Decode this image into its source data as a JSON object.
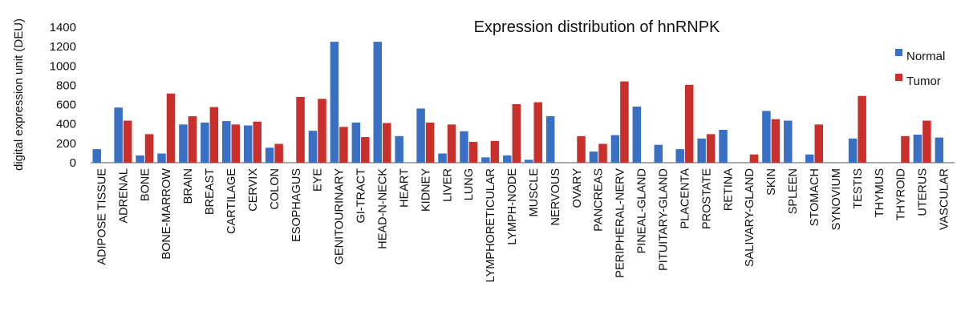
{
  "chart_data": {
    "type": "bar",
    "title": "Expression distribution of hnRNPK",
    "xlabel": "",
    "ylabel": "digital expression unit (DEU)",
    "ylim": [
      0,
      1400
    ],
    "yticks": [
      0,
      200,
      400,
      600,
      800,
      1000,
      1200,
      1400
    ],
    "grid": false,
    "legend_position": "top-right",
    "categories": [
      "ADIPOSE TISSUE",
      "ADRENAL",
      "BONE",
      "BONE-MARROW",
      "BRAIN",
      "BREAST",
      "CARTILAGE",
      "CERVIX",
      "COLON",
      "ESOPHAGUS",
      "EYE",
      "GENITOURINARY",
      "GI-TRACT",
      "HEAD-N-NECK",
      "HEART",
      "KIDNEY",
      "LIVER",
      "LUNG",
      "LYMPHORETICULAR",
      "LYMPH-NODE",
      "MUSCLE",
      "NERVOUS",
      "OVARY",
      "PANCREAS",
      "PERIPHERAL-NERV",
      "PINEAL-GLAND",
      "PITUITARY-GLAND",
      "PLACENTA",
      "PROSTATE",
      "RETINA",
      "SALIVARY-GLAND",
      "SKIN",
      "SPLEEN",
      "STOMACH",
      "SYNOVIUM",
      "TESTIS",
      "THYMUS",
      "THYROID",
      "UTERUS",
      "VASCULAR"
    ],
    "series": [
      {
        "name": "Normal",
        "color": "#3a70c4",
        "values": [
          140,
          570,
          75,
          95,
          395,
          415,
          430,
          385,
          155,
          0,
          330,
          1250,
          415,
          1250,
          275,
          560,
          95,
          325,
          55,
          75,
          30,
          480,
          0,
          115,
          285,
          580,
          185,
          140,
          250,
          340,
          0,
          535,
          435,
          85,
          0,
          250,
          0,
          0,
          290,
          260
        ]
      },
      {
        "name": "Tumor",
        "color": "#c9302c",
        "values": [
          0,
          435,
          295,
          715,
          480,
          575,
          395,
          425,
          195,
          680,
          660,
          370,
          265,
          410,
          0,
          415,
          395,
          215,
          225,
          605,
          625,
          0,
          275,
          195,
          840,
          0,
          0,
          805,
          295,
          0,
          85,
          450,
          0,
          395,
          0,
          690,
          0,
          275,
          435,
          0
        ]
      }
    ]
  }
}
